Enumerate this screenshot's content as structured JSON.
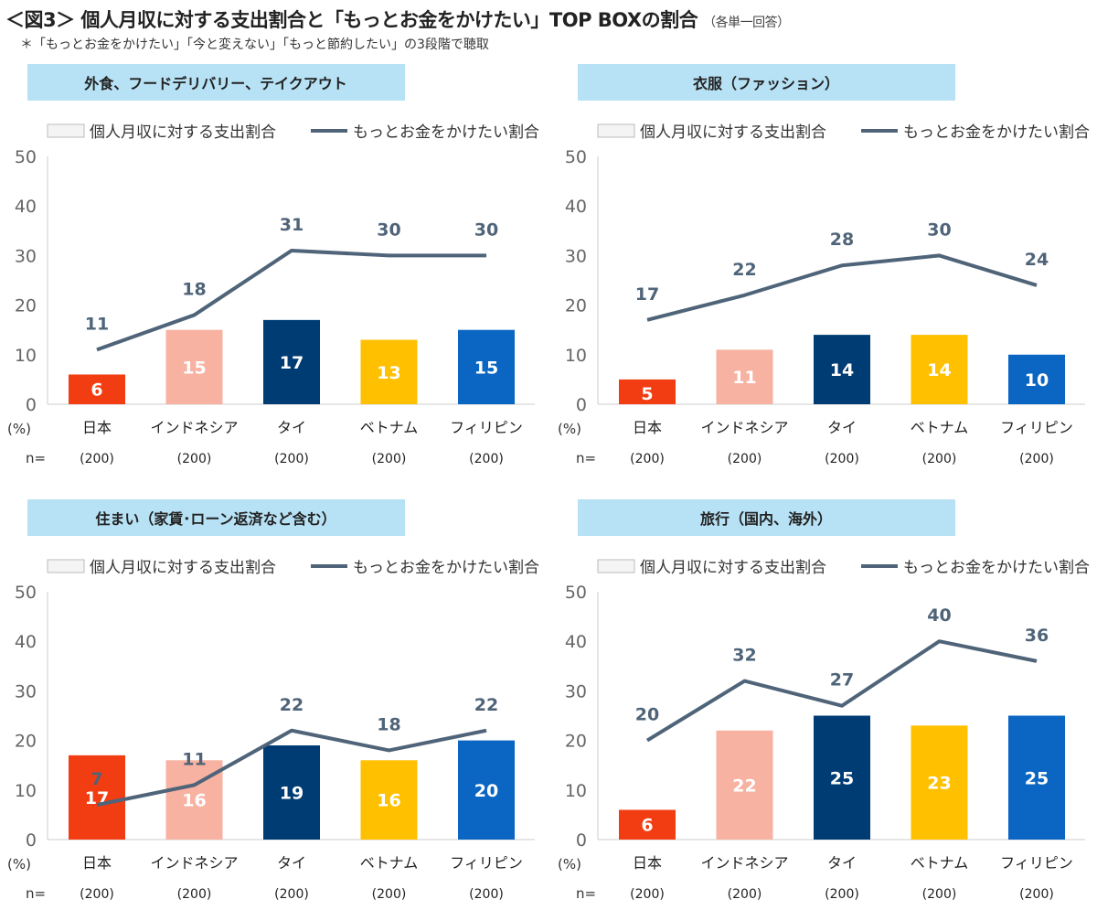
{
  "title": "＜図3＞ 個人月収に対する支出割合と「もっとお金をかけたい」TOP BOXの割合",
  "title_note": "（各単一回答）",
  "subnote": "＊「もっとお金をかけたい」「今と変えない」「もっと節約したい」の3段階で聴取",
  "colors": {
    "bars": [
      "#f23c12",
      "#f8b2a2",
      "#003c74",
      "#ffc000",
      "#0a66c2"
    ],
    "line": "#4f6479",
    "header_bg": "#b7e1f4"
  },
  "chart_data": [
    {
      "type": "bar+line",
      "title": "外食、フードデリバリー、テイクアウト",
      "categories": [
        "日本",
        "インドネシア",
        "タイ",
        "ベトナム",
        "フィリピン"
      ],
      "n": [
        "(200)",
        "(200)",
        "(200)",
        "(200)",
        "(200)"
      ],
      "n_label": "n=",
      "unit_label": "(%)",
      "ylim": [
        0,
        50
      ],
      "yticks": [
        0,
        10,
        20,
        30,
        40,
        50
      ],
      "legend": [
        "個人月収に対する支出割合",
        "もっとお金をかけたい割合"
      ],
      "series": [
        {
          "name": "個人月収に対する支出割合",
          "kind": "bar",
          "values": [
            6,
            15,
            17,
            13,
            15
          ]
        },
        {
          "name": "もっとお金をかけたい割合",
          "kind": "line",
          "values": [
            11,
            18,
            31,
            30,
            30
          ]
        }
      ]
    },
    {
      "type": "bar+line",
      "title": "衣服（ファッション）",
      "categories": [
        "日本",
        "インドネシア",
        "タイ",
        "ベトナム",
        "フィリピン"
      ],
      "n": [
        "(200)",
        "(200)",
        "(200)",
        "(200)",
        "(200)"
      ],
      "n_label": "n=",
      "unit_label": "(%)",
      "ylim": [
        0,
        50
      ],
      "yticks": [
        0,
        10,
        20,
        30,
        40,
        50
      ],
      "legend": [
        "個人月収に対する支出割合",
        "もっとお金をかけたい割合"
      ],
      "series": [
        {
          "name": "個人月収に対する支出割合",
          "kind": "bar",
          "values": [
            5,
            11,
            14,
            14,
            10
          ]
        },
        {
          "name": "もっとお金をかけたい割合",
          "kind": "line",
          "values": [
            17,
            22,
            28,
            30,
            24
          ]
        }
      ]
    },
    {
      "type": "bar+line",
      "title": "住まい（家賃･ローン返済など含む）",
      "categories": [
        "日本",
        "インドネシア",
        "タイ",
        "ベトナム",
        "フィリピン"
      ],
      "n": [
        "(200)",
        "(200)",
        "(200)",
        "(200)",
        "(200)"
      ],
      "n_label": "n=",
      "unit_label": "(%)",
      "ylim": [
        0,
        50
      ],
      "yticks": [
        0,
        10,
        20,
        30,
        40,
        50
      ],
      "legend": [
        "個人月収に対する支出割合",
        "もっとお金をかけたい割合"
      ],
      "series": [
        {
          "name": "個人月収に対する支出割合",
          "kind": "bar",
          "values": [
            17,
            16,
            19,
            16,
            20
          ]
        },
        {
          "name": "もっとお金をかけたい割合",
          "kind": "line",
          "values": [
            7,
            11,
            22,
            18,
            22
          ]
        }
      ]
    },
    {
      "type": "bar+line",
      "title": "旅行（国内、海外）",
      "categories": [
        "日本",
        "インドネシア",
        "タイ",
        "ベトナム",
        "フィリピン"
      ],
      "n": [
        "(200)",
        "(200)",
        "(200)",
        "(200)",
        "(200)"
      ],
      "n_label": "n=",
      "unit_label": "(%)",
      "ylim": [
        0,
        50
      ],
      "yticks": [
        0,
        10,
        20,
        30,
        40,
        50
      ],
      "legend": [
        "個人月収に対する支出割合",
        "もっとお金をかけたい割合"
      ],
      "series": [
        {
          "name": "個人月収に対する支出割合",
          "kind": "bar",
          "values": [
            6,
            22,
            25,
            23,
            25
          ]
        },
        {
          "name": "もっとお金をかけたい割合",
          "kind": "line",
          "values": [
            20,
            32,
            27,
            40,
            36
          ]
        }
      ]
    }
  ]
}
